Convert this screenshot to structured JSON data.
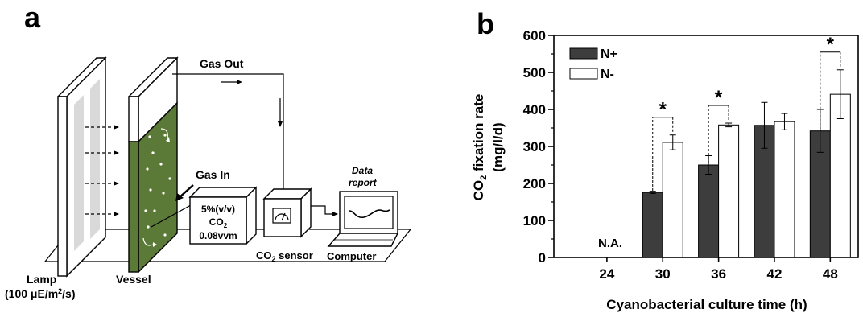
{
  "panel_a": {
    "label": "a",
    "gas_out": "Gas Out",
    "gas_in": "Gas In",
    "gas_box": {
      "line1": "5%(v/v)",
      "line2_main": "CO",
      "line2_sub": "2",
      "line3": "0.08vvm"
    },
    "sensor": {
      "main": "CO",
      "sub": "2",
      "rest": " sensor"
    },
    "data_report": {
      "line1": "Data",
      "line2": "report"
    },
    "computer": "Computer",
    "lamp": {
      "line1": "Lamp",
      "line2_a": "(100 μE/m",
      "line2_sup": "2",
      "line2_b": "/s)"
    },
    "vessel": "Vessel"
  },
  "panel_b": {
    "label": "b",
    "na_label": "N.A.",
    "significance": "*"
  },
  "colors": {
    "n_plus": "#3d3d3d",
    "n_minus": "#ffffff",
    "vessel_green": "#5b7a37"
  },
  "chart_data": {
    "type": "bar",
    "categories": [
      "24",
      "30",
      "36",
      "42",
      "48"
    ],
    "series": [
      {
        "name": "N+",
        "values": [
          null,
          176,
          250,
          357,
          342
        ],
        "errors": [
          null,
          3,
          25,
          62,
          58
        ]
      },
      {
        "name": "N-",
        "values": [
          null,
          311,
          358,
          367,
          441
        ],
        "errors": [
          null,
          20,
          5,
          22,
          66
        ]
      }
    ],
    "significant_categories": [
      "30",
      "36",
      "48"
    ],
    "xlabel": "Cyanobacterial culture time (h)",
    "ylabel": {
      "main": "CO",
      "sub": "2",
      "rest": " fixation rate",
      "line2": "(mg/l/d)"
    },
    "yticks": [
      "0",
      "100",
      "200",
      "300",
      "400",
      "500",
      "600"
    ],
    "ylim": [
      0,
      600
    ],
    "legend_position": "top-left",
    "grid": false
  }
}
